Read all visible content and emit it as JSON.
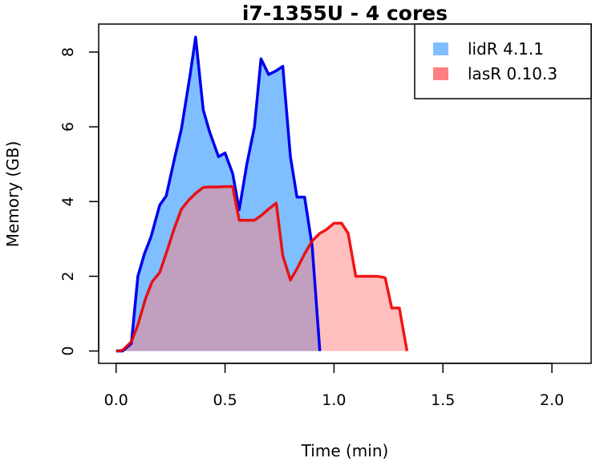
{
  "chart_data": {
    "type": "area",
    "title": "i7-1355U - 4 cores",
    "xlabel": "Time (min)",
    "ylabel": "Memory (GB)",
    "xlim": [
      -0.08,
      2.18
    ],
    "ylim": [
      -0.33,
      8.75
    ],
    "xticks": [
      "0.0",
      "0.5",
      "1.0",
      "1.5",
      "2.0"
    ],
    "xtick_values": [
      0,
      0.5,
      1.0,
      1.5,
      2.0
    ],
    "yticks": [
      "0",
      "2",
      "4",
      "6",
      "8"
    ],
    "ytick_values": [
      0,
      2,
      4,
      6,
      8
    ],
    "grid": false,
    "legend_position": "top-right",
    "series": [
      {
        "name": "lidR 4.1.1",
        "fill": "#80bfff",
        "line": "#0000ee",
        "x": [
          0.0,
          0.03,
          0.07,
          0.1,
          0.13,
          0.16,
          0.2,
          0.23,
          0.27,
          0.3,
          0.34,
          0.365,
          0.4,
          0.43,
          0.47,
          0.5,
          0.535,
          0.565,
          0.6,
          0.635,
          0.665,
          0.7,
          0.735,
          0.765,
          0.8,
          0.83,
          0.865,
          0.9,
          0.935
        ],
        "y": [
          0.0,
          0.0,
          0.2,
          2.0,
          2.6,
          3.05,
          3.9,
          4.15,
          5.2,
          5.95,
          7.4,
          8.4,
          6.45,
          5.85,
          5.2,
          5.3,
          4.75,
          3.78,
          5.0,
          6.0,
          7.82,
          7.4,
          7.5,
          7.62,
          5.2,
          4.12,
          4.12,
          2.8,
          0.0
        ]
      },
      {
        "name": "lasR 0.10.3",
        "fill": "#ff8080",
        "line": "#ee0000",
        "x": [
          0.0,
          0.03,
          0.07,
          0.1,
          0.135,
          0.165,
          0.2,
          0.235,
          0.265,
          0.3,
          0.335,
          0.365,
          0.4,
          0.435,
          0.465,
          0.5,
          0.535,
          0.565,
          0.6,
          0.635,
          0.665,
          0.7,
          0.735,
          0.765,
          0.8,
          0.83,
          0.865,
          0.9,
          0.935,
          0.965,
          1.0,
          1.035,
          1.065,
          1.1,
          1.135,
          1.165,
          1.2,
          1.235,
          1.265,
          1.3,
          1.335
        ],
        "y": [
          0.0,
          0.02,
          0.25,
          0.7,
          1.4,
          1.85,
          2.1,
          2.7,
          3.25,
          3.8,
          4.05,
          4.22,
          4.38,
          4.39,
          4.39,
          4.4,
          4.4,
          3.5,
          3.5,
          3.5,
          3.62,
          3.8,
          3.96,
          2.55,
          1.9,
          2.2,
          2.6,
          2.95,
          3.15,
          3.25,
          3.42,
          3.42,
          3.15,
          2.0,
          2.0,
          2.0,
          2.0,
          1.96,
          1.15,
          1.15,
          0.0
        ]
      }
    ]
  }
}
